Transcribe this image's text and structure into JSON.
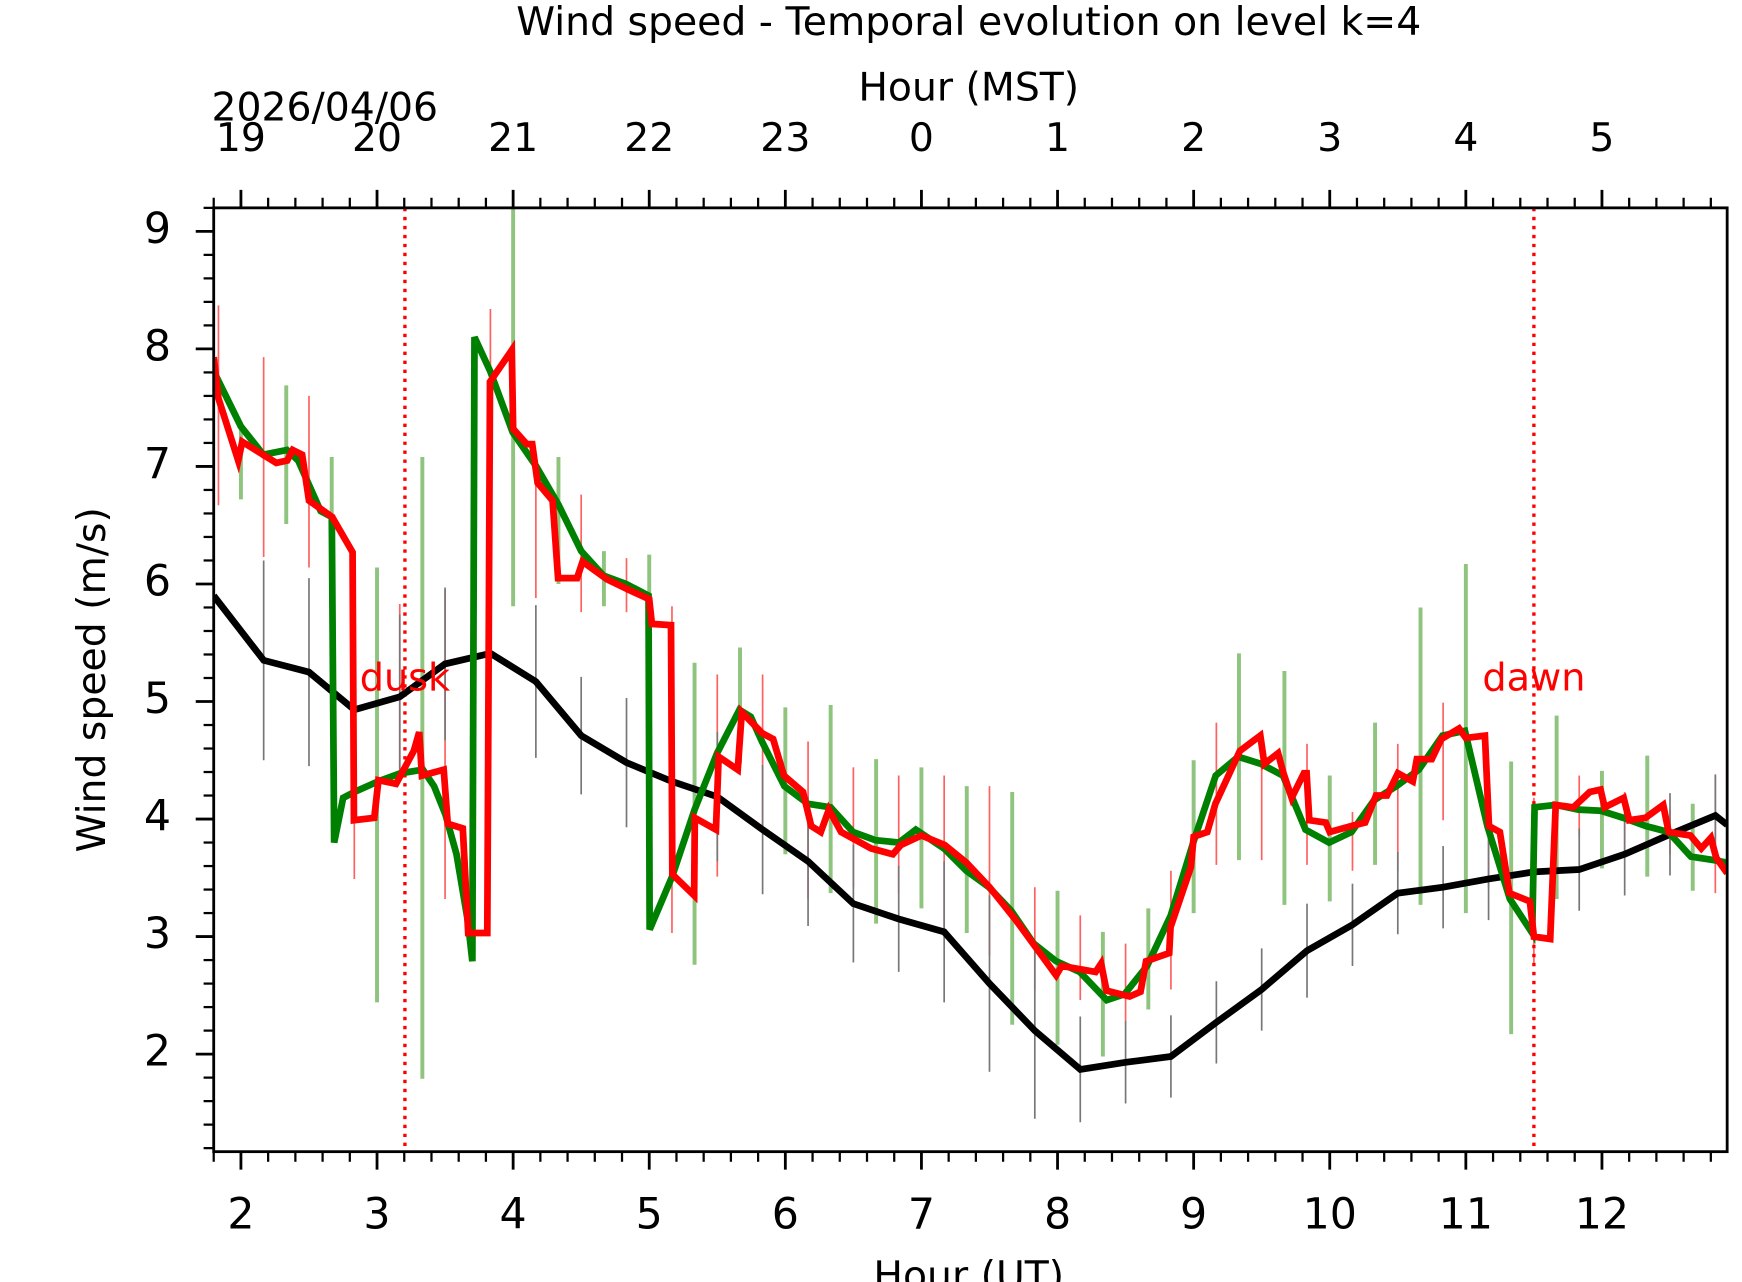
{
  "chart_data": {
    "type": "line",
    "title": "Wind speed - Temporal evolution on level k=4",
    "xlabel": "Hour (UT)",
    "ylabel": "Wind speed (m/s)",
    "x2label": "Hour (MST)",
    "date_label": "2026/04/06",
    "xlim": [
      1.8,
      12.92
    ],
    "ylim": [
      1.17,
      9.2
    ],
    "xticks": [
      2,
      3,
      4,
      5,
      6,
      7,
      8,
      9,
      10,
      11,
      12
    ],
    "xminorticks": [
      1.8,
      2.2,
      2.4,
      2.6,
      2.8,
      3.2,
      3.4,
      3.6,
      3.8,
      4.2,
      4.4,
      4.6,
      4.8,
      5.2,
      5.4,
      5.6,
      5.8,
      6.2,
      6.4,
      6.6,
      6.8,
      7.2,
      7.4,
      7.6,
      7.8,
      8.2,
      8.4,
      8.6,
      8.8,
      9.2,
      9.4,
      9.6,
      9.8,
      10.2,
      10.4,
      10.6,
      10.8,
      11.2,
      11.4,
      11.6,
      11.8,
      12.2,
      12.4,
      12.6,
      12.8
    ],
    "x2ticks": [
      {
        "value": 2,
        "label": "19"
      },
      {
        "value": 3,
        "label": "20"
      },
      {
        "value": 4,
        "label": "21"
      },
      {
        "value": 5,
        "label": "22"
      },
      {
        "value": 6,
        "label": "23"
      },
      {
        "value": 7,
        "label": "0"
      },
      {
        "value": 8,
        "label": "1"
      },
      {
        "value": 9,
        "label": "2"
      },
      {
        "value": 10,
        "label": "3"
      },
      {
        "value": 11,
        "label": "4"
      },
      {
        "value": 12,
        "label": "5"
      }
    ],
    "yticks": [
      2,
      3,
      4,
      5,
      6,
      7,
      8,
      9
    ],
    "yminorticks": [
      1.2,
      1.4,
      1.6,
      1.8,
      2.2,
      2.4,
      2.6,
      2.8,
      3.2,
      3.4,
      3.6,
      3.8,
      4.2,
      4.4,
      4.6,
      4.8,
      5.2,
      5.4,
      5.6,
      5.8,
      6.2,
      6.4,
      6.6,
      6.8,
      7.2,
      7.4,
      7.6,
      7.8,
      8.2,
      8.4,
      8.6,
      8.8,
      9.2
    ],
    "vlines": [
      {
        "x": 3.205,
        "label": "dusk",
        "color": "#ff0000"
      },
      {
        "x": 11.5,
        "label": "dawn",
        "color": "#ff0000"
      }
    ],
    "error_bars": [
      {
        "color": "#8fc47f",
        "x": [
          2.0,
          2.333,
          2.667,
          3.0,
          3.333,
          4.0,
          4.333,
          4.667,
          5.0,
          5.333,
          5.667,
          6.0,
          6.333,
          6.667,
          7.0,
          7.333,
          7.667,
          8.0,
          8.333,
          8.667,
          9.0,
          9.333,
          9.667,
          10.0,
          10.333,
          10.667,
          11.0,
          11.333,
          11.667,
          12.0,
          12.333,
          12.667
        ],
        "low": [
          6.72,
          6.51,
          6.6,
          2.44,
          1.79,
          5.81,
          6.0,
          5.81,
          5.76,
          2.76,
          4.47,
          3.7,
          3.37,
          3.11,
          3.24,
          3.03,
          2.25,
          2.08,
          1.98,
          2.38,
          3.2,
          3.65,
          3.27,
          3.3,
          3.61,
          3.27,
          3.2,
          2.17,
          3.32,
          3.58,
          3.51,
          3.39
        ],
        "high": [
          7.31,
          7.69,
          7.08,
          6.14,
          7.08,
          9.3,
          7.08,
          6.28,
          6.25,
          5.33,
          5.46,
          4.95,
          4.97,
          4.51,
          4.44,
          4.28,
          4.23,
          3.39,
          3.04,
          3.24,
          4.5,
          5.41,
          5.26,
          4.37,
          4.82,
          5.8,
          6.17,
          4.49,
          4.88,
          4.41,
          4.54,
          4.13
        ]
      },
      {
        "color": "#ff6060",
        "x": [
          1.835,
          2.167,
          2.5,
          2.833,
          3.167,
          3.5,
          3.833,
          4.167,
          4.5,
          4.833,
          5.167,
          5.5,
          5.833,
          6.167,
          6.5,
          6.833,
          7.167,
          7.5,
          7.833,
          8.167,
          8.5,
          8.833,
          9.167,
          9.5,
          9.833,
          10.167,
          10.5,
          10.833,
          11.167,
          11.5,
          11.833,
          12.167,
          12.5,
          12.833
        ],
        "low": [
          6.67,
          6.23,
          6.14,
          3.49,
          4.37,
          3.32,
          5.04,
          5.88,
          5.76,
          5.76,
          3.03,
          3.51,
          3.89,
          3.32,
          3.42,
          3.37,
          3.03,
          2.84,
          2.55,
          2.46,
          2.27,
          2.55,
          3.61,
          3.65,
          3.61,
          3.56,
          3.56,
          3.99,
          3.42,
          2.75,
          3.85,
          3.7,
          3.7,
          3.37
        ],
        "high": [
          8.37,
          7.93,
          7.6,
          5.61,
          5.83,
          5.95,
          8.34,
          6.92,
          6.76,
          6.22,
          5.81,
          5.23,
          5.23,
          4.66,
          4.44,
          4.37,
          4.37,
          4.28,
          3.42,
          3.18,
          2.94,
          3.56,
          4.82,
          4.66,
          4.64,
          4.06,
          4.64,
          4.99,
          4.28,
          4.18,
          4.37,
          4.23,
          4.08,
          4.37
        ]
      }
    ],
    "series": [
      {
        "color": "#000000",
        "error_color": "#777777",
        "x": [
          1.8,
          2.167,
          2.5,
          2.833,
          3.167,
          3.5,
          3.833,
          4.167,
          4.5,
          4.833,
          5.167,
          5.5,
          5.833,
          6.167,
          6.5,
          6.833,
          7.167,
          7.5,
          7.833,
          8.167,
          8.5,
          8.833,
          9.167,
          9.5,
          9.833,
          10.167,
          10.5,
          10.833,
          11.167,
          11.5,
          11.833,
          12.167,
          12.5,
          12.833,
          12.92
        ],
        "values": [
          5.9,
          5.35,
          5.25,
          4.93,
          5.04,
          5.32,
          5.41,
          5.17,
          4.71,
          4.48,
          4.32,
          4.19,
          3.91,
          3.64,
          3.28,
          3.15,
          3.04,
          2.6,
          2.2,
          1.87,
          1.93,
          1.98,
          2.27,
          2.55,
          2.88,
          3.1,
          3.37,
          3.42,
          3.49,
          3.55,
          3.57,
          3.7,
          3.87,
          4.03,
          3.95
        ],
        "errors": [
          0.8,
          0.85,
          0.8,
          0.75,
          0.7,
          0.65,
          0.7,
          0.65,
          0.5,
          0.55,
          0.6,
          0.55,
          0.55,
          0.55,
          0.5,
          0.45,
          0.6,
          0.75,
          0.75,
          0.45,
          0.35,
          0.35,
          0.35,
          0.35,
          0.4,
          0.35,
          0.35,
          0.35,
          0.35,
          0.35,
          0.35,
          0.35,
          0.35,
          0.35,
          0.35
        ]
      },
      {
        "color": "#008000",
        "x": [
          1.8,
          2.0,
          2.165,
          2.338,
          2.421,
          2.586,
          2.668,
          2.685,
          2.751,
          2.833,
          3.007,
          3.172,
          3.337,
          3.419,
          3.502,
          3.584,
          3.667,
          3.7,
          3.716,
          3.832,
          3.997,
          4.17,
          4.335,
          4.5,
          4.665,
          4.83,
          4.995,
          5.003,
          5.168,
          5.333,
          5.498,
          5.663,
          5.746,
          5.828,
          5.993,
          6.166,
          6.332,
          6.497,
          6.662,
          6.835,
          6.959,
          7.165,
          7.33,
          7.495,
          7.66,
          7.825,
          7.99,
          8.163,
          8.361,
          8.493,
          8.658,
          8.832,
          8.997,
          9.162,
          9.327,
          9.492,
          9.657,
          9.822,
          9.995,
          10.16,
          10.325,
          10.49,
          10.655,
          10.828,
          10.993,
          11.158,
          11.323,
          11.488,
          11.505,
          11.662,
          11.827,
          11.992,
          12.157,
          12.322,
          12.488,
          12.653,
          12.825,
          12.916
        ],
        "values": [
          7.81,
          7.34,
          7.1,
          7.14,
          7.05,
          6.62,
          6.57,
          3.8,
          4.18,
          4.23,
          4.32,
          4.39,
          4.42,
          4.28,
          4.04,
          3.7,
          3.13,
          2.79,
          8.1,
          7.81,
          7.29,
          7.0,
          6.67,
          6.28,
          6.07,
          6.0,
          5.9,
          3.06,
          3.51,
          4.08,
          4.56,
          4.93,
          4.87,
          4.66,
          4.28,
          4.13,
          4.1,
          3.89,
          3.82,
          3.8,
          3.91,
          3.75,
          3.56,
          3.42,
          3.22,
          2.94,
          2.79,
          2.7,
          2.46,
          2.51,
          2.75,
          3.18,
          3.8,
          4.37,
          4.53,
          4.47,
          4.37,
          3.91,
          3.8,
          3.89,
          4.16,
          4.28,
          4.42,
          4.71,
          4.75,
          3.94,
          3.32,
          3.03,
          4.1,
          4.12,
          4.08,
          4.07,
          4.01,
          3.94,
          3.89,
          3.68,
          3.65,
          3.63
        ]
      },
      {
        "color": "#ff0000",
        "x": [
          1.8,
          1.835,
          1.98,
          2.01,
          2.26,
          2.34,
          2.38,
          2.45,
          2.5,
          2.67,
          2.82,
          2.83,
          2.98,
          3.01,
          3.14,
          3.27,
          3.31,
          3.33,
          3.49,
          3.52,
          3.63,
          3.67,
          3.81,
          3.83,
          3.99,
          4.0,
          4.1,
          4.14,
          4.18,
          4.29,
          4.33,
          4.47,
          4.51,
          4.69,
          4.85,
          5.0,
          5.02,
          5.16,
          5.17,
          5.33,
          5.335,
          5.49,
          5.51,
          5.65,
          5.68,
          5.83,
          5.91,
          5.99,
          6.13,
          6.19,
          6.26,
          6.32,
          6.41,
          6.63,
          6.79,
          6.85,
          7.0,
          7.17,
          7.33,
          7.5,
          7.7,
          7.87,
          7.99,
          8.03,
          8.28,
          8.32,
          8.36,
          8.53,
          8.61,
          8.65,
          8.82,
          8.83,
          8.98,
          9.0,
          9.1,
          9.16,
          9.34,
          9.49,
          9.52,
          9.62,
          9.66,
          9.72,
          9.81,
          9.83,
          9.85,
          9.97,
          10.0,
          10.16,
          10.26,
          10.34,
          10.42,
          10.5,
          10.61,
          10.64,
          10.75,
          10.82,
          10.95,
          11.0,
          11.14,
          11.17,
          11.25,
          11.32,
          11.47,
          11.5,
          11.62,
          11.66,
          11.79,
          11.91,
          11.99,
          12.02,
          12.16,
          12.2,
          12.32,
          12.45,
          12.49,
          12.65,
          12.73,
          12.8,
          12.84,
          12.92
        ],
        "values": [
          7.93,
          7.58,
          7.05,
          7.21,
          7.03,
          7.05,
          7.14,
          7.1,
          6.71,
          6.57,
          6.27,
          3.99,
          4.01,
          4.33,
          4.3,
          4.58,
          4.74,
          4.37,
          4.42,
          3.96,
          3.92,
          3.03,
          3.03,
          7.72,
          7.99,
          7.32,
          7.19,
          7.19,
          6.86,
          6.71,
          6.05,
          6.05,
          6.19,
          6.04,
          5.95,
          5.87,
          5.66,
          5.65,
          3.53,
          3.35,
          4.01,
          3.91,
          4.53,
          4.42,
          4.91,
          4.73,
          4.68,
          4.37,
          4.23,
          3.94,
          3.89,
          4.08,
          3.89,
          3.75,
          3.7,
          3.78,
          3.86,
          3.78,
          3.63,
          3.42,
          3.13,
          2.86,
          2.67,
          2.75,
          2.7,
          2.77,
          2.54,
          2.49,
          2.53,
          2.79,
          2.86,
          3.08,
          3.59,
          3.85,
          3.89,
          4.13,
          4.58,
          4.71,
          4.47,
          4.56,
          4.39,
          4.18,
          4.39,
          4.39,
          3.99,
          3.97,
          3.89,
          3.94,
          3.97,
          4.2,
          4.2,
          4.39,
          4.32,
          4.51,
          4.51,
          4.68,
          4.77,
          4.69,
          4.71,
          3.94,
          3.89,
          3.37,
          3.3,
          3.0,
          2.98,
          4.12,
          4.1,
          4.23,
          4.25,
          4.1,
          4.18,
          3.99,
          4.01,
          4.12,
          3.89,
          3.86,
          3.75,
          3.84,
          3.67,
          3.54
        ]
      }
    ]
  }
}
